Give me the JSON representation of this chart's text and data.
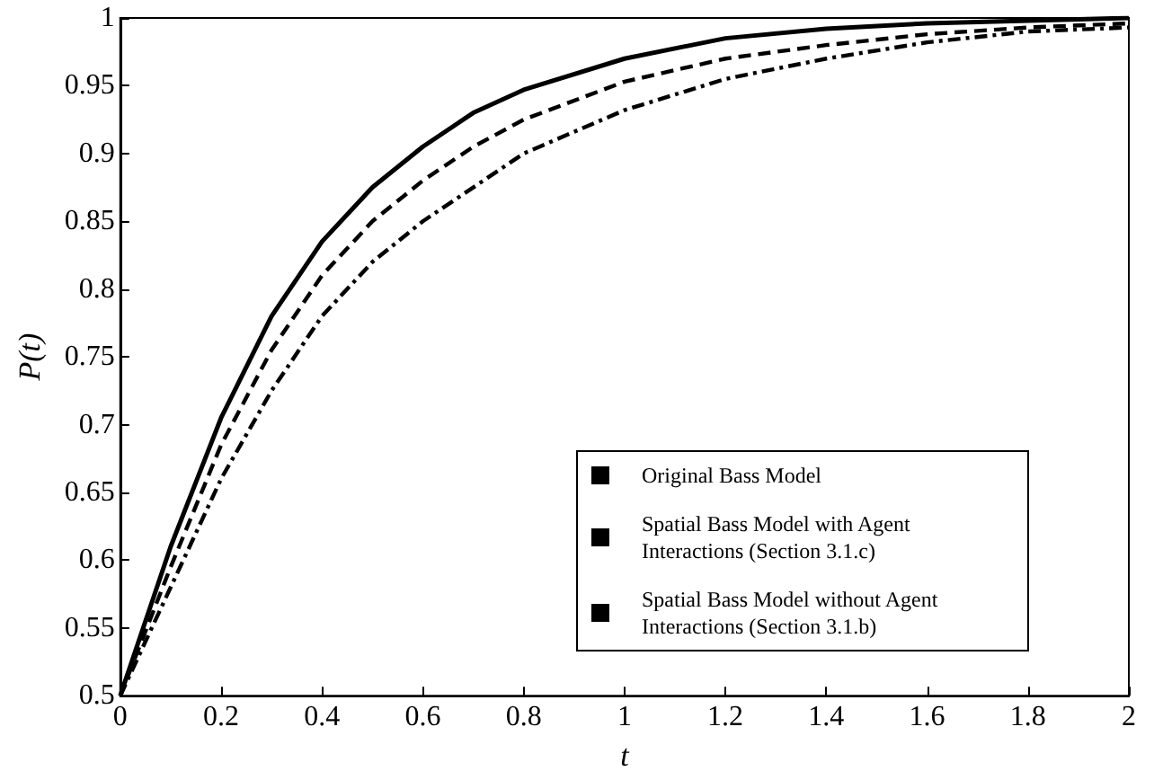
{
  "chart_data": {
    "type": "line",
    "xlabel": "t",
    "ylabel": "P(t)",
    "x": [
      0,
      0.1,
      0.2,
      0.3,
      0.4,
      0.5,
      0.6,
      0.7,
      0.8,
      1.0,
      1.2,
      1.4,
      1.6,
      1.8,
      2.0
    ],
    "series": [
      {
        "name": "Original Bass Model",
        "color": "#000000",
        "line_style": "solid",
        "values": [
          0.5,
          0.61,
          0.705,
          0.78,
          0.835,
          0.875,
          0.905,
          0.93,
          0.947,
          0.97,
          0.985,
          0.992,
          0.996,
          0.998,
          1.0
        ]
      },
      {
        "name": "Spatial Bass Model with Agent Interactions (Section 3.1.c)",
        "color": "#000000",
        "line_style": "dashdot",
        "values": [
          0.5,
          0.58,
          0.66,
          0.725,
          0.78,
          0.82,
          0.85,
          0.875,
          0.9,
          0.932,
          0.955,
          0.97,
          0.982,
          0.99,
          0.993
        ]
      },
      {
        "name": "Spatial Bass Model without Agent Interactions (Section 3.1.b)",
        "color": "#000000",
        "line_style": "dashed",
        "values": [
          0.5,
          0.595,
          0.685,
          0.755,
          0.81,
          0.85,
          0.88,
          0.905,
          0.925,
          0.953,
          0.97,
          0.98,
          0.988,
          0.993,
          0.996
        ]
      }
    ],
    "xlim": [
      0,
      2
    ],
    "xticks": [
      0,
      0.2,
      0.4,
      0.6,
      0.8,
      1,
      1.2,
      1.4,
      1.6,
      1.8,
      2
    ],
    "ylim": [
      0.5,
      1
    ],
    "yticks": [
      0.5,
      0.55,
      0.6,
      0.65,
      0.7,
      0.75,
      0.8,
      0.85,
      0.9,
      0.95,
      1
    ],
    "grid": false,
    "legend": "bottom right",
    "marker": "none"
  }
}
